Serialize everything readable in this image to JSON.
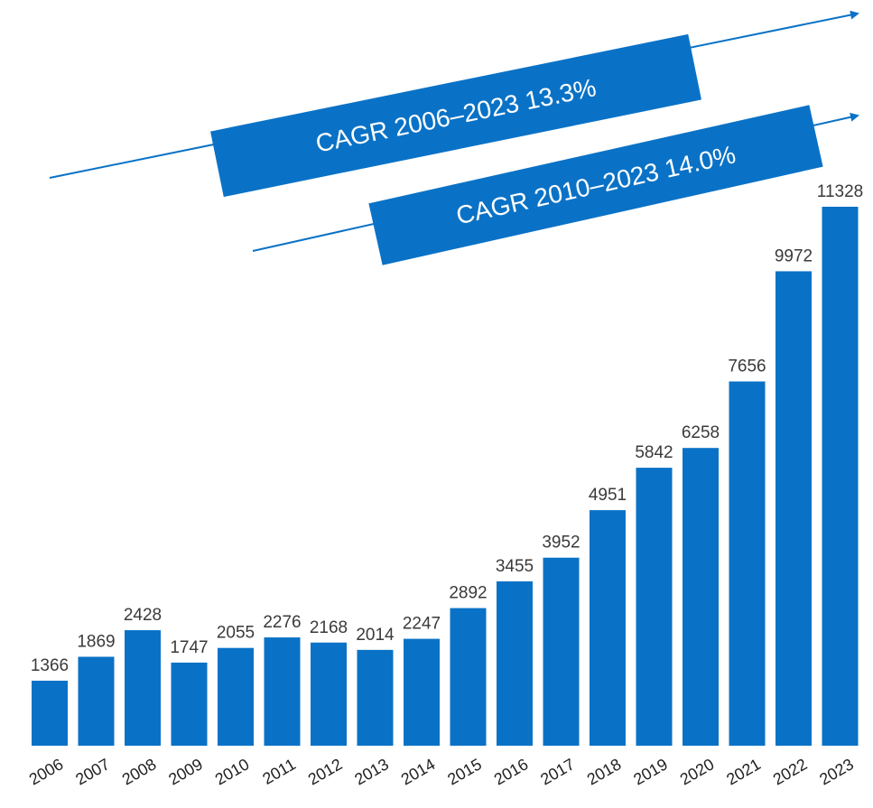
{
  "chart_data": {
    "type": "bar",
    "categories": [
      "2006",
      "2007",
      "2008",
      "2009",
      "2010",
      "2011",
      "2012",
      "2013",
      "2014",
      "2015",
      "2016",
      "2017",
      "2018",
      "2019",
      "2020",
      "2021",
      "2022",
      "2023"
    ],
    "values": [
      1366,
      1869,
      2428,
      1747,
      2055,
      2276,
      2168,
      2014,
      2247,
      2892,
      3455,
      3952,
      4951,
      5842,
      6258,
      7656,
      9972,
      11328
    ],
    "color": "#0a72c6",
    "annotations": [
      "CAGR 2006–2023 13.3%",
      "CAGR 2010–2023 14.0%"
    ]
  }
}
